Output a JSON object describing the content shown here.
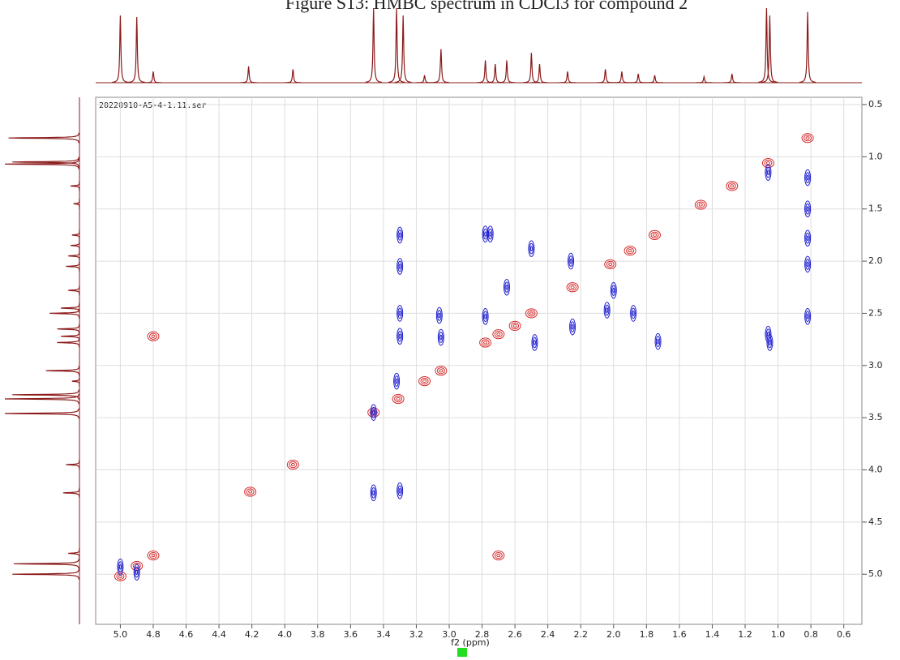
{
  "chart_data": {
    "type": "scatter",
    "title": "Figure S13: HMBC spectrum in CDCl3 for compound 2",
    "annotation": "20220910-A5-4-1.11.ser",
    "x_label": "f2 (ppm)",
    "xlim": [
      5.15,
      0.49
    ],
    "ylim": [
      0.43,
      5.48
    ],
    "grid": true,
    "xticks": [
      {
        "value": 5,
        "label": "5.0"
      },
      4.8,
      4.6,
      4.4,
      4.2,
      {
        "value": 4,
        "label": "4.0"
      },
      3.8,
      3.6,
      3.4,
      3.2,
      {
        "value": 3,
        "label": "3.0"
      },
      2.8,
      2.6,
      2.4,
      2.2,
      {
        "value": 2,
        "label": "2.0"
      },
      1.8,
      1.6,
      1.4,
      1.2,
      {
        "value": 1,
        "label": "1.0"
      },
      0.8,
      0.6
    ],
    "yticks": [
      0.5,
      {
        "value": 1,
        "label": "1.0"
      },
      1.5,
      {
        "value": 2,
        "label": "2.0"
      },
      2.5,
      {
        "value": 3,
        "label": "3.0"
      },
      3.5,
      {
        "value": 4,
        "label": "4.0"
      },
      4.5,
      {
        "value": 5,
        "label": "5.0"
      }
    ],
    "series": [
      {
        "color": "#d42a2a",
        "x": [
          5.0,
          4.9,
          4.8,
          4.21,
          3.95,
          3.46,
          3.31,
          3.15,
          3.05,
          2.78,
          2.7,
          2.6,
          2.5,
          2.25,
          2.02,
          1.9,
          1.75,
          1.47,
          1.28,
          1.06,
          0.82,
          4.8,
          2.7
        ],
        "values": [
          5.02,
          4.92,
          4.82,
          4.21,
          3.95,
          3.45,
          3.32,
          3.15,
          3.05,
          2.78,
          2.7,
          2.62,
          2.5,
          2.25,
          2.03,
          1.9,
          1.75,
          1.46,
          1.28,
          1.06,
          0.82,
          2.72,
          4.82
        ]
      },
      {
        "color": "#2020d0",
        "x": [
          3.3,
          3.3,
          3.3,
          3.3,
          3.32,
          3.46,
          3.46,
          3.3,
          3.06,
          3.05,
          2.78,
          2.75,
          2.78,
          2.65,
          2.5,
          2.48,
          2.26,
          2.25,
          2.04,
          2.0,
          1.88,
          1.73,
          1.06,
          1.05,
          0.82,
          0.82,
          0.82,
          0.82,
          0.82,
          1.06,
          5.0,
          4.9
        ],
        "values": [
          1.75,
          2.05,
          2.5,
          2.72,
          3.15,
          3.45,
          4.22,
          4.2,
          2.52,
          2.73,
          1.74,
          1.74,
          2.53,
          2.25,
          1.88,
          2.78,
          2.0,
          2.63,
          2.47,
          2.28,
          2.5,
          2.77,
          2.7,
          2.78,
          1.2,
          1.5,
          1.78,
          2.03,
          2.53,
          1.15,
          4.93,
          4.98
        ]
      }
    ],
    "projection": {
      "color": "#8b1a1a",
      "x": [
        5.0,
        4.9,
        4.8,
        4.22,
        3.95,
        3.46,
        3.32,
        3.28,
        3.15,
        3.05,
        2.78,
        2.72,
        2.65,
        2.5,
        2.45,
        2.28,
        2.05,
        1.95,
        1.85,
        1.75,
        1.45,
        1.28,
        1.07,
        1.05,
        0.82
      ],
      "values": [
        90,
        88,
        15,
        22,
        18,
        100,
        100,
        90,
        10,
        45,
        30,
        25,
        30,
        40,
        25,
        15,
        18,
        15,
        12,
        10,
        8,
        12,
        100,
        90,
        95
      ]
    }
  }
}
